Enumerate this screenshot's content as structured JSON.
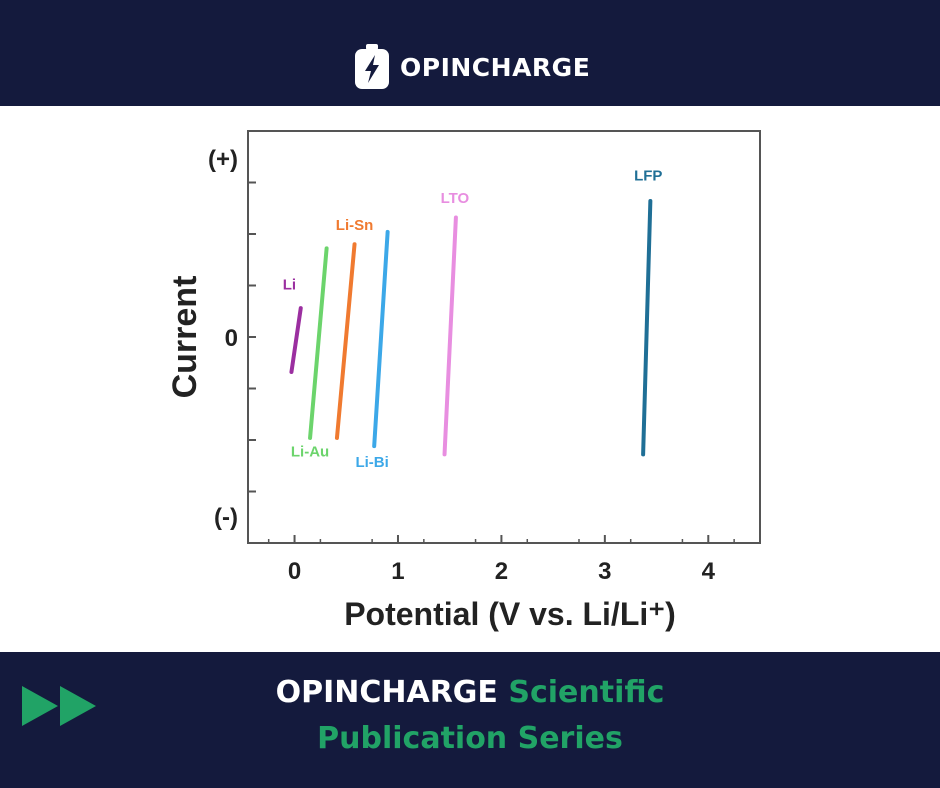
{
  "header": {
    "brand_name": "OPINCHARGE",
    "logo_icon": "battery-bolt-icon"
  },
  "chart_data": {
    "type": "line",
    "title": "",
    "xlabel": "Potential (V vs. Li/Li⁺)",
    "ylabel": "Current",
    "xlim": [
      -0.45,
      4.5
    ],
    "ylim": [
      -1.0,
      1.0
    ],
    "x_ticks": [
      0,
      1,
      2,
      3,
      4
    ],
    "y_tick_labels": [
      {
        "label": "(+)",
        "y": 0.87
      },
      {
        "label": "0",
        "y": 0.0
      },
      {
        "label": "(-)",
        "y": -0.87
      }
    ],
    "grid": false,
    "legend": "none",
    "series": [
      {
        "name": "Li",
        "color": "#9b2fa0",
        "label_x": -0.05,
        "label_y": 0.23,
        "points": [
          [
            -0.03,
            -0.17
          ],
          [
            0.06,
            0.14
          ]
        ]
      },
      {
        "name": "Li-Au",
        "color": "#6cd46c",
        "label_x": 0.15,
        "label_y": -0.58,
        "points": [
          [
            0.15,
            -0.49
          ],
          [
            0.31,
            0.43
          ]
        ]
      },
      {
        "name": "Li-Sn",
        "color": "#f07a30",
        "label_x": 0.58,
        "label_y": 0.52,
        "points": [
          [
            0.41,
            -0.49
          ],
          [
            0.58,
            0.45
          ]
        ]
      },
      {
        "name": "Li-Bi",
        "color": "#3ca8e8",
        "label_x": 0.75,
        "label_y": -0.63,
        "points": [
          [
            0.77,
            -0.53
          ],
          [
            0.9,
            0.51
          ]
        ]
      },
      {
        "name": "LTO",
        "color": "#e88ee0",
        "label_x": 1.55,
        "label_y": 0.65,
        "points": [
          [
            1.45,
            -0.57
          ],
          [
            1.56,
            0.58
          ]
        ]
      },
      {
        "name": "LFP",
        "color": "#1f6f96",
        "label_x": 3.42,
        "label_y": 0.76,
        "points": [
          [
            3.37,
            -0.57
          ],
          [
            3.44,
            0.66
          ]
        ]
      }
    ]
  },
  "footer": {
    "title_part1": "OPINCHARGE",
    "title_part2": "Scientific",
    "title_line2": "Publication Series",
    "arrow_icon": "fast-forward-icon",
    "accent_color": "#21a366"
  }
}
